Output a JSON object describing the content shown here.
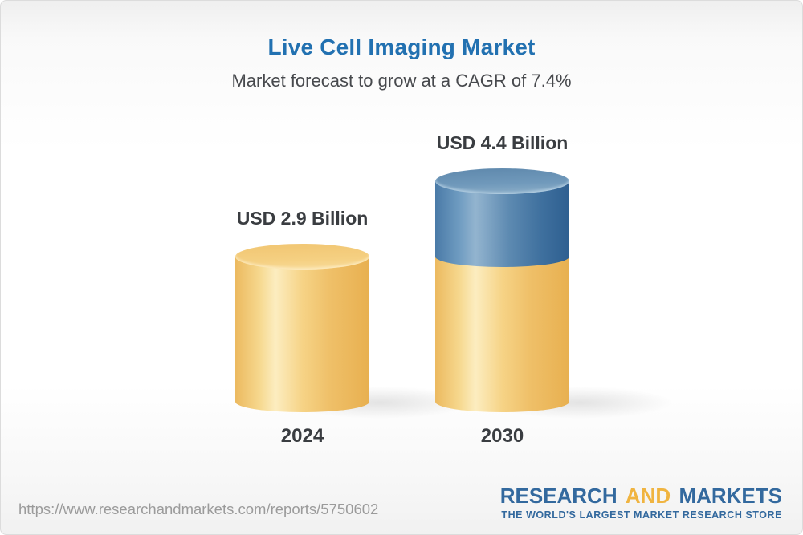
{
  "header": {
    "title": "Live Cell Imaging Market",
    "subtitle": "Market forecast to grow at a CAGR of 7.4%"
  },
  "chart_data": {
    "type": "bar",
    "variant": "3d-cylinder",
    "title": "Live Cell Imaging Market",
    "subtitle": "Market forecast to grow at a CAGR of 7.4%",
    "cagr_percent": 7.4,
    "unit": "USD Billion",
    "categories": [
      "2024",
      "2030"
    ],
    "values": [
      2.9,
      4.4
    ],
    "legend": "none",
    "axes": "none",
    "bars": [
      {
        "year": "2024",
        "value": 2.9,
        "label": "USD 2.9 Billion",
        "segments": [
          {
            "value": 2.9,
            "color_key": "yellow"
          }
        ]
      },
      {
        "year": "2030",
        "value": 4.4,
        "label": "USD 4.4 Billion",
        "segments": [
          {
            "value": 2.9,
            "color_key": "yellow"
          },
          {
            "value": 1.5,
            "color_key": "blue"
          }
        ]
      }
    ],
    "colors": {
      "yellow": "#f0bf64",
      "blue": "#4a7aa6",
      "title_blue": "#2271b1",
      "label_gray": "#3a3d41"
    }
  },
  "footer": {
    "url": "https://www.researchandmarkets.com/reports/5750602",
    "logo": {
      "word1": "RESEARCH",
      "word2": "AND",
      "word3": "MARKETS",
      "tagline": "THE WORLD'S LARGEST MARKET RESEARCH STORE"
    }
  }
}
